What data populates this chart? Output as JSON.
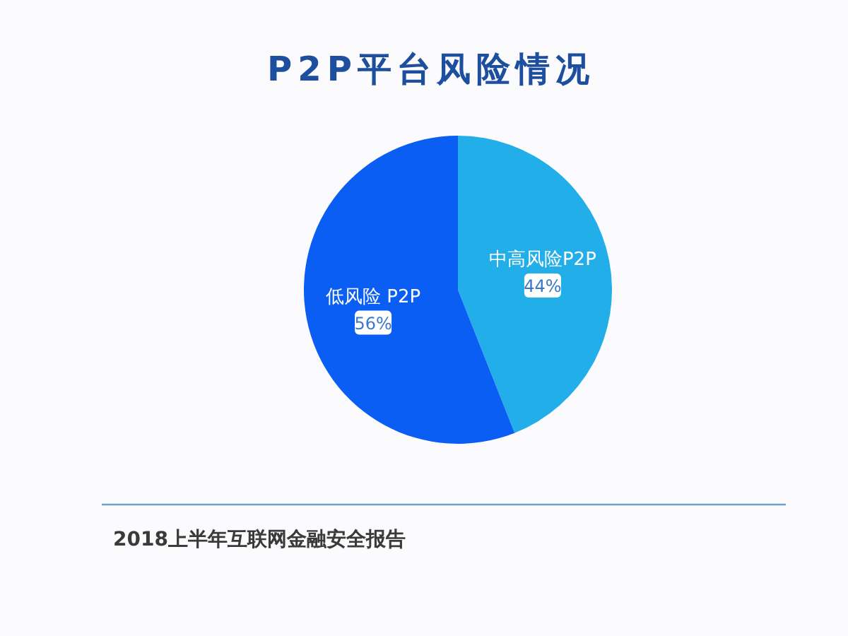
{
  "chart_data": {
    "type": "pie",
    "title": "P2P平台风险情况",
    "categories": [
      "中高风险P2P",
      "低风险 P2P"
    ],
    "values": [
      44,
      56
    ],
    "colors": [
      "#22aee9",
      "#0a5ef4"
    ],
    "value_labels": [
      "44%",
      "56%"
    ],
    "annotations": [
      "2018上半年互联网金融安全报告"
    ]
  }
}
